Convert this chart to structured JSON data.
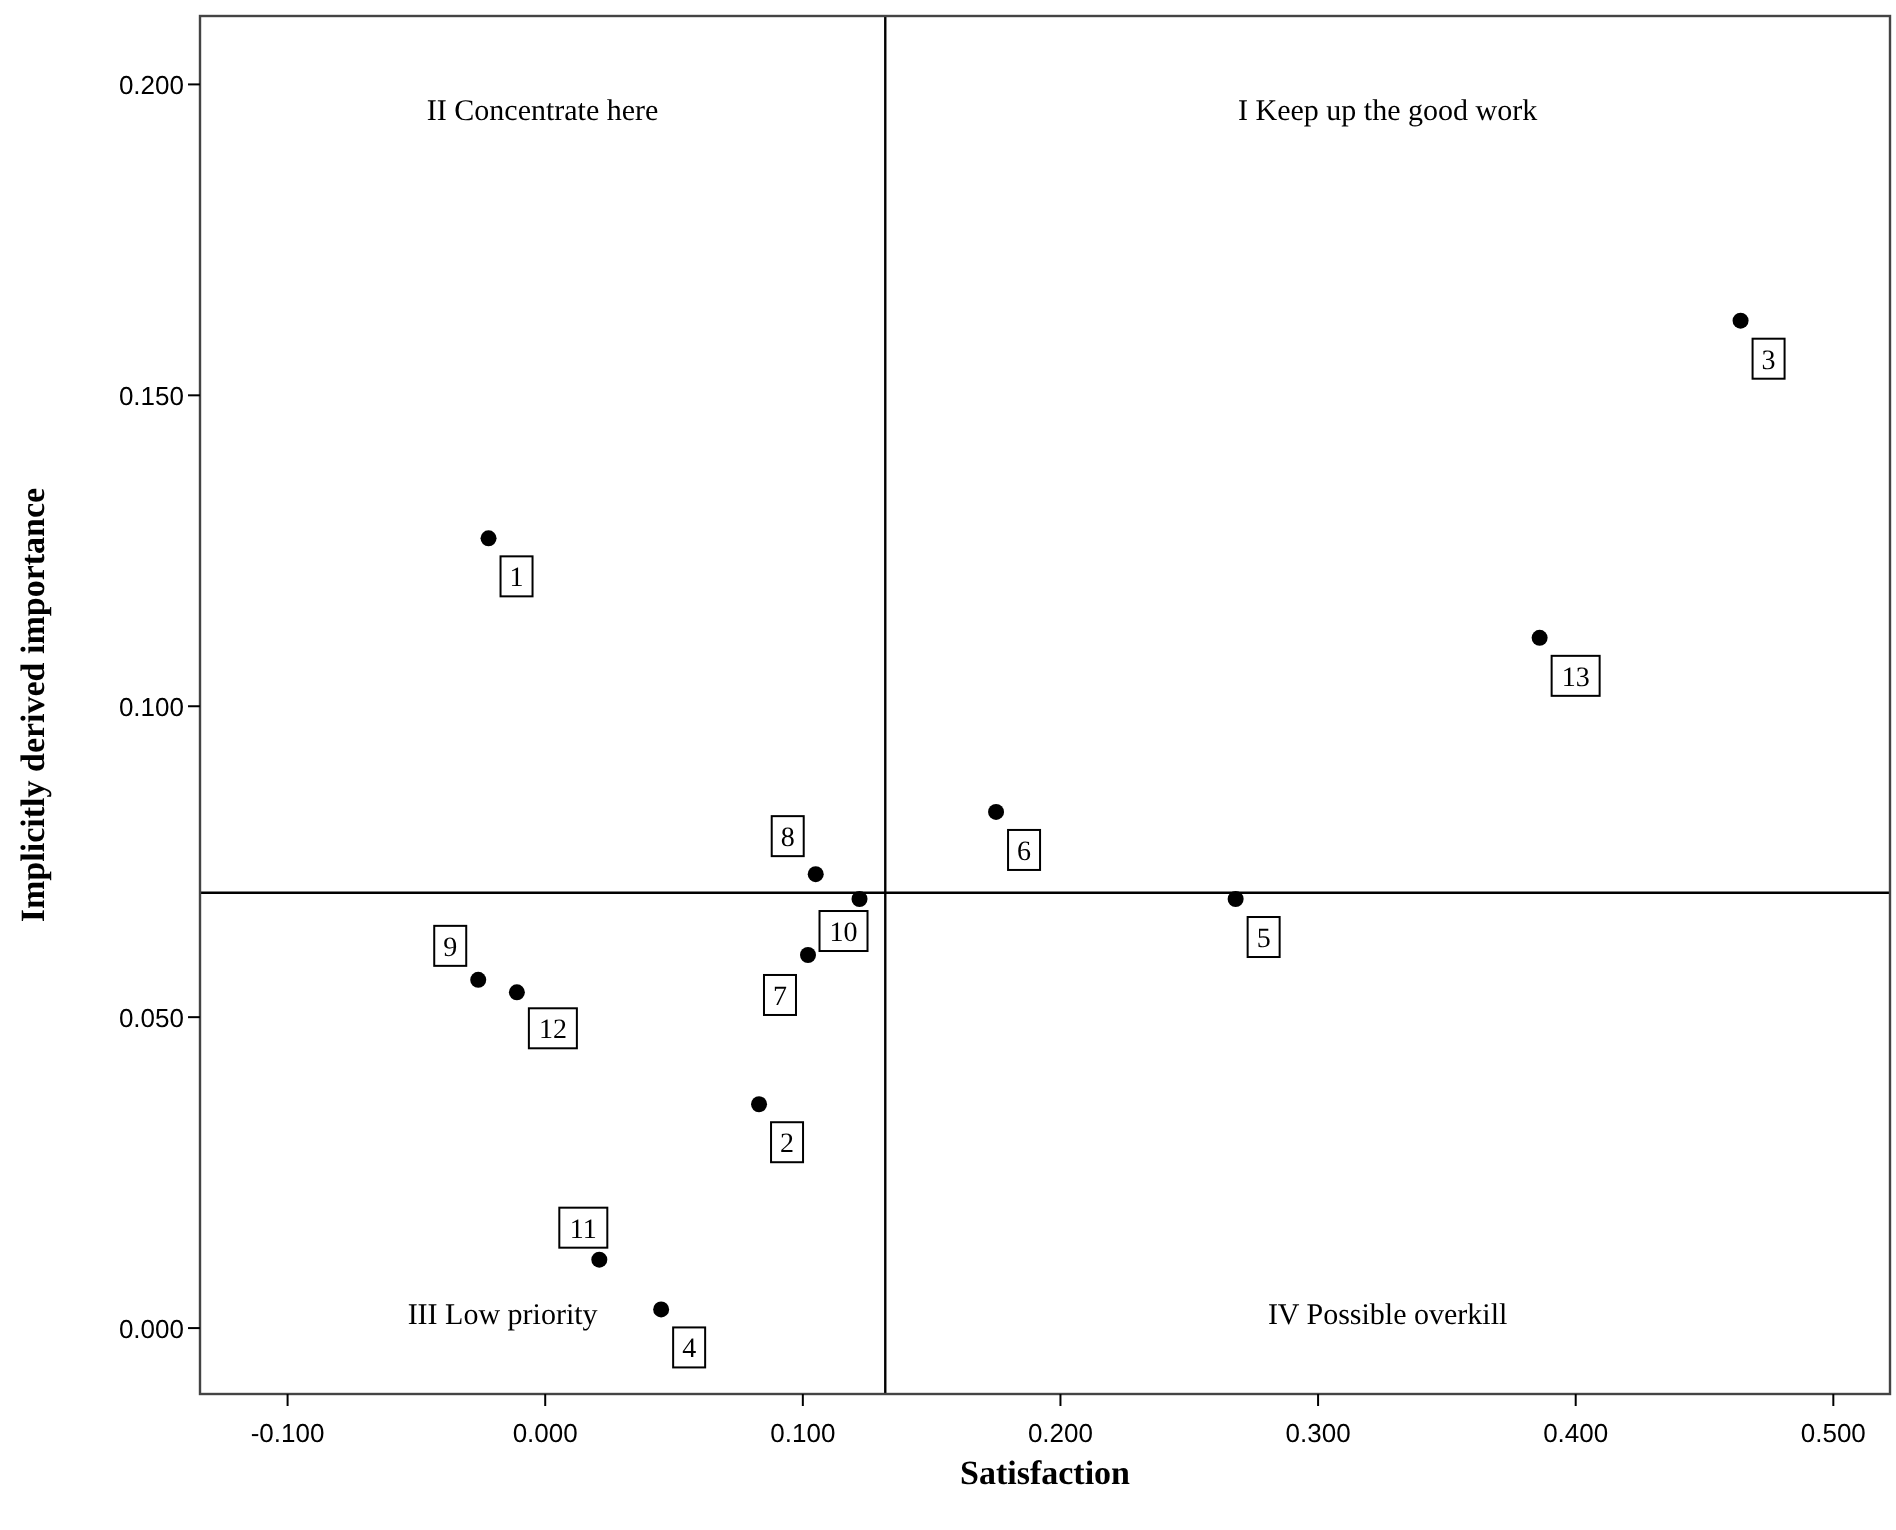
{
  "chart_data": {
    "type": "scatter",
    "xlabel": "Satisfaction",
    "ylabel": "Implicitly derived importance",
    "x": [
      -0.022,
      0.083,
      0.464,
      0.045,
      0.268,
      0.175,
      0.102,
      0.105,
      -0.026,
      0.122,
      0.021,
      -0.011,
      0.386
    ],
    "values": [
      0.127,
      0.036,
      0.162,
      0.003,
      0.069,
      0.083,
      0.06,
      0.073,
      0.056,
      0.069,
      0.011,
      0.054,
      0.111
    ],
    "color": "#000000",
    "marker": "circle",
    "grid": false,
    "xlim": [
      -0.134,
      0.522
    ],
    "ylim": [
      -0.0106,
      0.211
    ],
    "xticks": [
      {
        "value": -0.1,
        "label": "-0.100"
      },
      {
        "value": 0,
        "label": "0.000"
      },
      {
        "value": 0.1,
        "label": "0.100"
      },
      {
        "value": 0.2,
        "label": "0.200"
      },
      {
        "value": 0.3,
        "label": "0.300"
      },
      {
        "value": 0.4,
        "label": "0.400"
      },
      {
        "value": 0.5,
        "label": "0.500"
      }
    ],
    "yticks": [
      {
        "value": 0,
        "label": "0.000"
      },
      {
        "value": 0.05,
        "label": "0.050"
      },
      {
        "value": 0.1,
        "label": "0.100"
      },
      {
        "value": 0.15,
        "label": "0.150"
      },
      {
        "value": 0.2,
        "label": "0.200"
      }
    ],
    "ref_lines": [
      {
        "axis": "x",
        "value": 0.132
      },
      {
        "axis": "y",
        "value": 0.07
      }
    ],
    "annotations": [
      "II Concentrate here",
      "I Keep up the good work",
      "III Low priority",
      "IV Possible overkill",
      {
        "text": "1",
        "x": -0.022,
        "y": 0.127
      },
      {
        "text": "2",
        "x": 0.083,
        "y": 0.036
      },
      {
        "text": "3",
        "x": 0.464,
        "y": 0.162
      },
      {
        "text": "4",
        "x": 0.045,
        "y": 0.003
      },
      {
        "text": "5",
        "x": 0.268,
        "y": 0.069
      },
      {
        "text": "6",
        "x": 0.175,
        "y": 0.083
      },
      {
        "text": "7",
        "x": 0.102,
        "y": 0.06
      },
      {
        "text": "8",
        "x": 0.105,
        "y": 0.073
      },
      {
        "text": "9",
        "x": -0.026,
        "y": 0.056
      },
      {
        "text": "10",
        "x": 0.122,
        "y": 0.069
      },
      {
        "text": "11",
        "x": 0.021,
        "y": 0.011
      },
      {
        "text": "12",
        "x": -0.011,
        "y": 0.054
      },
      {
        "text": "13",
        "x": 0.386,
        "y": 0.111
      }
    ]
  }
}
